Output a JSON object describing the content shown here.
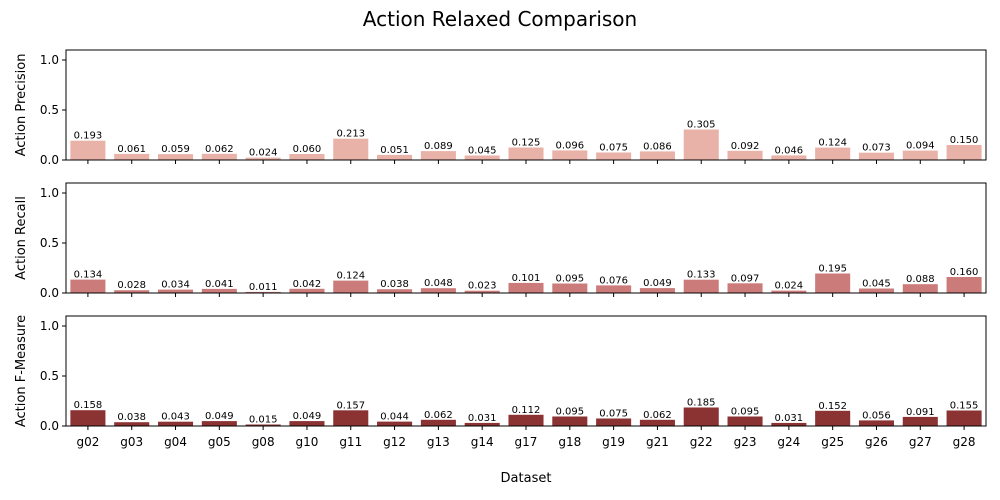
{
  "chart_data": {
    "type": "bar",
    "title": "Action Relaxed Comparison",
    "xlabel": "Dataset",
    "categories": [
      "g02",
      "g03",
      "g04",
      "g05",
      "g08",
      "g10",
      "g11",
      "g12",
      "g13",
      "g14",
      "g17",
      "g18",
      "g19",
      "g21",
      "g22",
      "g23",
      "g24",
      "g25",
      "g26",
      "g27",
      "g28"
    ],
    "ylim": [
      0,
      1.1
    ],
    "yticks": [
      0.0,
      0.5,
      1.0
    ],
    "ytick_labels": [
      "0.0",
      "0.5",
      "1.0"
    ],
    "grid": false,
    "series": [
      {
        "ylabel": "Action Precision",
        "color": "#e9b2a8",
        "values": [
          0.193,
          0.061,
          0.059,
          0.062,
          0.024,
          0.06,
          0.213,
          0.051,
          0.089,
          0.045,
          0.125,
          0.096,
          0.075,
          0.086,
          0.305,
          0.092,
          0.046,
          0.124,
          0.073,
          0.094,
          0.15
        ],
        "labels": [
          "0.193",
          "0.061",
          "0.059",
          "0.062",
          "0.024",
          "0.060",
          "0.213",
          "0.051",
          "0.089",
          "0.045",
          "0.125",
          "0.096",
          "0.075",
          "0.086",
          "0.305",
          "0.092",
          "0.046",
          "0.124",
          "0.073",
          "0.094",
          "0.150"
        ]
      },
      {
        "ylabel": "Action Recall",
        "color": "#cc7b7b",
        "values": [
          0.134,
          0.028,
          0.034,
          0.041,
          0.011,
          0.042,
          0.124,
          0.038,
          0.048,
          0.023,
          0.101,
          0.095,
          0.076,
          0.049,
          0.133,
          0.097,
          0.024,
          0.195,
          0.045,
          0.088,
          0.16
        ],
        "labels": [
          "0.134",
          "0.028",
          "0.034",
          "0.041",
          "0.011",
          "0.042",
          "0.124",
          "0.038",
          "0.048",
          "0.023",
          "0.101",
          "0.095",
          "0.076",
          "0.049",
          "0.133",
          "0.097",
          "0.024",
          "0.195",
          "0.045",
          "0.088",
          "0.160"
        ]
      },
      {
        "ylabel": "Action F-Measure",
        "color": "#8b3232",
        "values": [
          0.158,
          0.038,
          0.043,
          0.049,
          0.015,
          0.049,
          0.157,
          0.044,
          0.062,
          0.031,
          0.112,
          0.095,
          0.075,
          0.062,
          0.185,
          0.095,
          0.031,
          0.152,
          0.056,
          0.091,
          0.155
        ],
        "labels": [
          "0.158",
          "0.038",
          "0.043",
          "0.049",
          "0.015",
          "0.049",
          "0.157",
          "0.044",
          "0.062",
          "0.031",
          "0.112",
          "0.095",
          "0.075",
          "0.062",
          "0.185",
          "0.095",
          "0.031",
          "0.152",
          "0.056",
          "0.091",
          "0.155"
        ]
      }
    ]
  }
}
